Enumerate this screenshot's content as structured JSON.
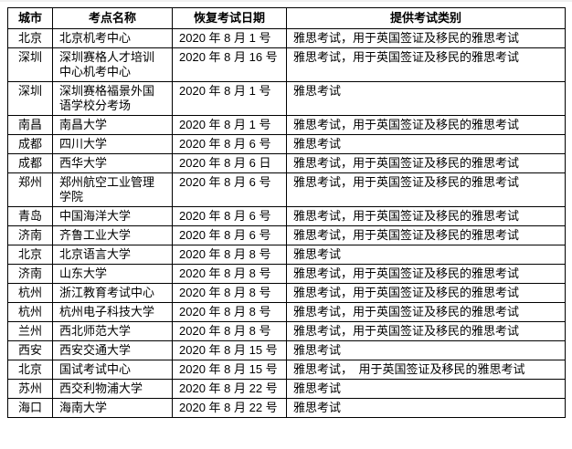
{
  "table": {
    "columns": [
      {
        "key": "city",
        "label": "城市"
      },
      {
        "key": "center",
        "label": "考点名称"
      },
      {
        "key": "date",
        "label": "恢复考试日期"
      },
      {
        "key": "category",
        "label": "提供考试类别"
      }
    ],
    "rows": [
      {
        "city": "北京",
        "center": "北京机考中心",
        "date": "2020 年 8 月 1 号",
        "category": "雅思考试，用于英国签证及移民的雅思考试"
      },
      {
        "city": "深圳",
        "center": "深圳赛格人才培训中心机考中心",
        "date": "2020 年 8 月 16 号",
        "category": "雅思考试，用于英国签证及移民的雅思考试"
      },
      {
        "city": "深圳",
        "center": "深圳赛格福景外国语学校分考场",
        "date": "2020 年 8 月 1 号",
        "category": "雅思考试"
      },
      {
        "city": "南昌",
        "center": "南昌大学",
        "date": "2020 年 8 月 1 号",
        "category": "雅思考试，用于英国签证及移民的雅思考试"
      },
      {
        "city": "成都",
        "center": "四川大学",
        "date": "2020 年 8 月 6 号",
        "category": "雅思考试"
      },
      {
        "city": "成都",
        "center": "西华大学",
        "date": "2020 年 8 月 6 日",
        "category": "雅思考试，用于英国签证及移民的雅思考试"
      },
      {
        "city": "郑州",
        "center": "郑州航空工业管理学院",
        "date": "2020 年 8 月 6 号",
        "category": "雅思考试，用于英国签证及移民的雅思考试"
      },
      {
        "city": "青岛",
        "center": "中国海洋大学",
        "date": "2020 年 8 月 6 号",
        "category": "雅思考试，用于英国签证及移民的雅思考试"
      },
      {
        "city": "济南",
        "center": "齐鲁工业大学",
        "date": "2020 年 8 月 6 号",
        "category": "雅思考试，用于英国签证及移民的雅思考试"
      },
      {
        "city": "北京",
        "center": "北京语言大学",
        "date": "2020 年 8 月 8 号",
        "category": "雅思考试"
      },
      {
        "city": "济南",
        "center": "山东大学",
        "date": "2020 年 8 月 8 号",
        "category": "雅思考试，用于英国签证及移民的雅思考试"
      },
      {
        "city": "杭州",
        "center": "浙江教育考试中心",
        "date": "2020 年 8 月 8 号",
        "category": "雅思考试，用于英国签证及移民的雅思考试"
      },
      {
        "city": "杭州",
        "center": "杭州电子科技大学",
        "date": "2020 年 8 月 8 号",
        "category": "雅思考试，用于英国签证及移民的雅思考试"
      },
      {
        "city": "兰州",
        "center": "西北师范大学",
        "date": "2020 年 8 月 8 号",
        "category": "雅思考试，用于英国签证及移民的雅思考试"
      },
      {
        "city": "西安",
        "center": "西安交通大学",
        "date": "2020 年 8 月 15 号",
        "category": "雅思考试"
      },
      {
        "city": "北京",
        "center": "国试考试中心",
        "date": "2020 年 8 月 15 号",
        "category": "雅思考试，　用于英国签证及移民的雅思考试"
      },
      {
        "city": "苏州",
        "center": "西交利物浦大学",
        "date": "2020 年 8 月 22 号",
        "category": "雅思考试"
      },
      {
        "city": "海口",
        "center": "海南大学",
        "date": "2020 年 8 月 22 号",
        "category": "雅思考试"
      }
    ]
  },
  "colors": {
    "border": "#000000",
    "text": "#000000",
    "background": "#ffffff"
  }
}
